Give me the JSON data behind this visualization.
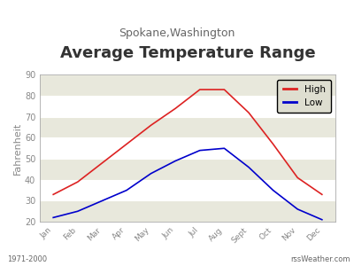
{
  "title": "Average Temperature Range",
  "subtitle": "Spokane,Washington",
  "ylabel": "Fahrenheit",
  "months": [
    "Jan",
    "Feb",
    "Mar",
    "Apr",
    "May",
    "Jun",
    "Jul",
    "Aug",
    "Sept",
    "Oct",
    "Nov",
    "Dec"
  ],
  "high": [
    33,
    39,
    48,
    57,
    66,
    74,
    83,
    83,
    72,
    57,
    41,
    33
  ],
  "low": [
    22,
    25,
    30,
    35,
    43,
    49,
    54,
    55,
    46,
    35,
    26,
    21
  ],
  "high_color": "#dd2222",
  "low_color": "#0000cc",
  "ylim": [
    20,
    90
  ],
  "yticks": [
    20,
    30,
    40,
    50,
    60,
    70,
    80,
    90
  ],
  "bg_plot": "#ffffff",
  "bg_fig": "#ffffff",
  "stripe_color": "#e8e8dc",
  "footer_left": "1971-2000",
  "footer_right": "rssWeather.com",
  "title_fontsize": 13,
  "subtitle_fontsize": 9,
  "legend_bg": "#deded0",
  "tick_label_color": "#888888",
  "axis_label_color": "#888888",
  "line_width": 1.2
}
